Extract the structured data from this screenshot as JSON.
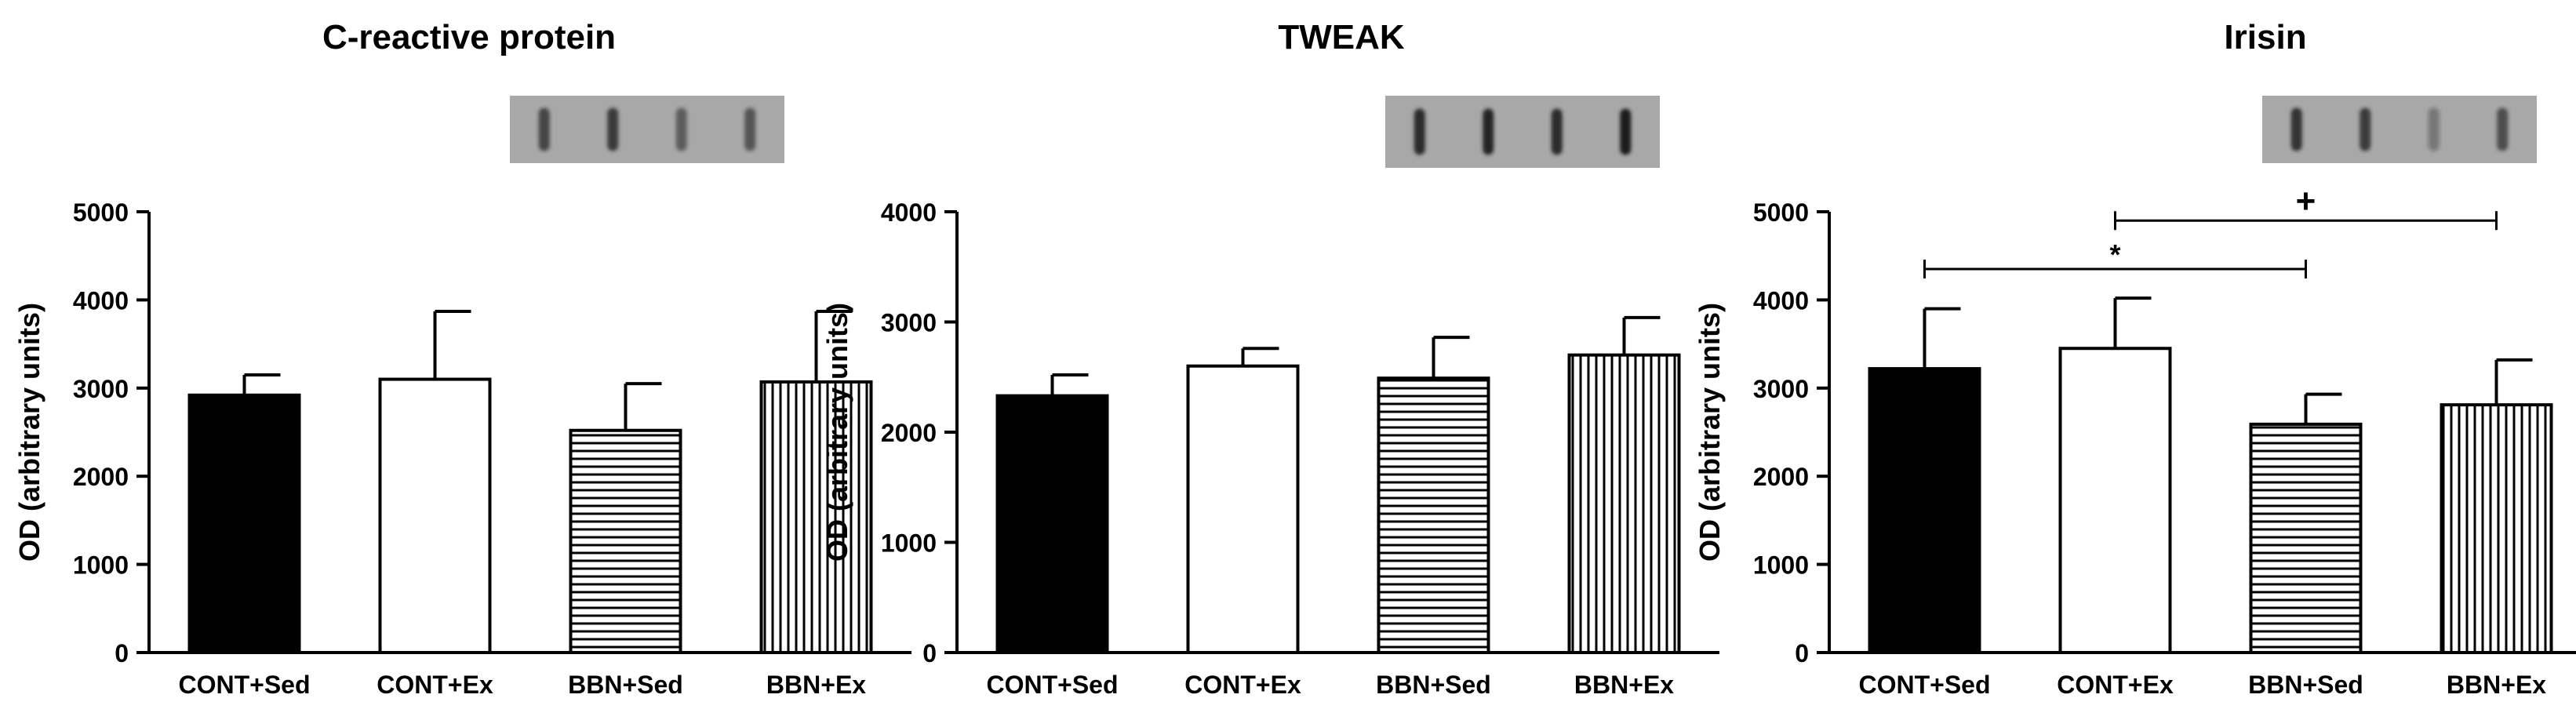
{
  "colors": {
    "ink": "#000000",
    "paper": "#ffffff",
    "blot_bg": "#a8a8a8",
    "band": "#1e1e1e"
  },
  "chart_data": [
    {
      "type": "bar",
      "title": "C-reactive protein",
      "ylabel": "OD (arbitrary units)",
      "xlabel": "",
      "ylim": [
        0,
        5000
      ],
      "yticks": [
        0,
        1000,
        2000,
        3000,
        4000,
        5000
      ],
      "categories": [
        "CONT+Sed",
        "CONT+Ex",
        "BBN+Sed",
        "BBN+Ex"
      ],
      "fills": [
        "solid",
        "open",
        "horizontal-stripes",
        "vertical-stripes"
      ],
      "values": [
        2920,
        3100,
        2520,
        3070
      ],
      "errors": [
        230,
        770,
        530,
        800
      ],
      "blot_band_intensity": [
        0.7,
        0.8,
        0.55,
        0.6
      ],
      "annotations": []
    },
    {
      "type": "bar",
      "title": "TWEAK",
      "ylabel": "OD (arbitrary units)",
      "xlabel": "",
      "ylim": [
        0,
        4000
      ],
      "yticks": [
        0,
        1000,
        2000,
        3000,
        4000
      ],
      "categories": [
        "CONT+Sed",
        "CONT+Ex",
        "BBN+Sed",
        "BBN+Ex"
      ],
      "fills": [
        "solid",
        "open",
        "horizontal-stripes",
        "vertical-stripes"
      ],
      "values": [
        2330,
        2600,
        2490,
        2700
      ],
      "errors": [
        190,
        160,
        370,
        340
      ],
      "blot_band_intensity": [
        0.9,
        0.95,
        0.9,
        1.0
      ],
      "annotations": []
    },
    {
      "type": "bar",
      "title": "Irisin",
      "ylabel": "OD (arbitrary units)",
      "xlabel": "",
      "ylim": [
        0,
        5000
      ],
      "yticks": [
        0,
        1000,
        2000,
        3000,
        4000,
        5000
      ],
      "categories": [
        "CONT+Sed",
        "CONT+Ex",
        "BBN+Sed",
        "BBN+Ex"
      ],
      "fills": [
        "solid",
        "open",
        "horizontal-stripes",
        "vertical-stripes"
      ],
      "values": [
        3220,
        3450,
        2590,
        2810
      ],
      "errors": [
        680,
        570,
        340,
        510
      ],
      "blot_band_intensity": [
        0.85,
        0.8,
        0.35,
        0.65
      ],
      "annotations": [
        {
          "from": 0,
          "to": 2,
          "at": 4350,
          "symbol": "*"
        },
        {
          "from": 1,
          "to": 3,
          "at": 4900,
          "symbol": "+"
        }
      ]
    }
  ]
}
